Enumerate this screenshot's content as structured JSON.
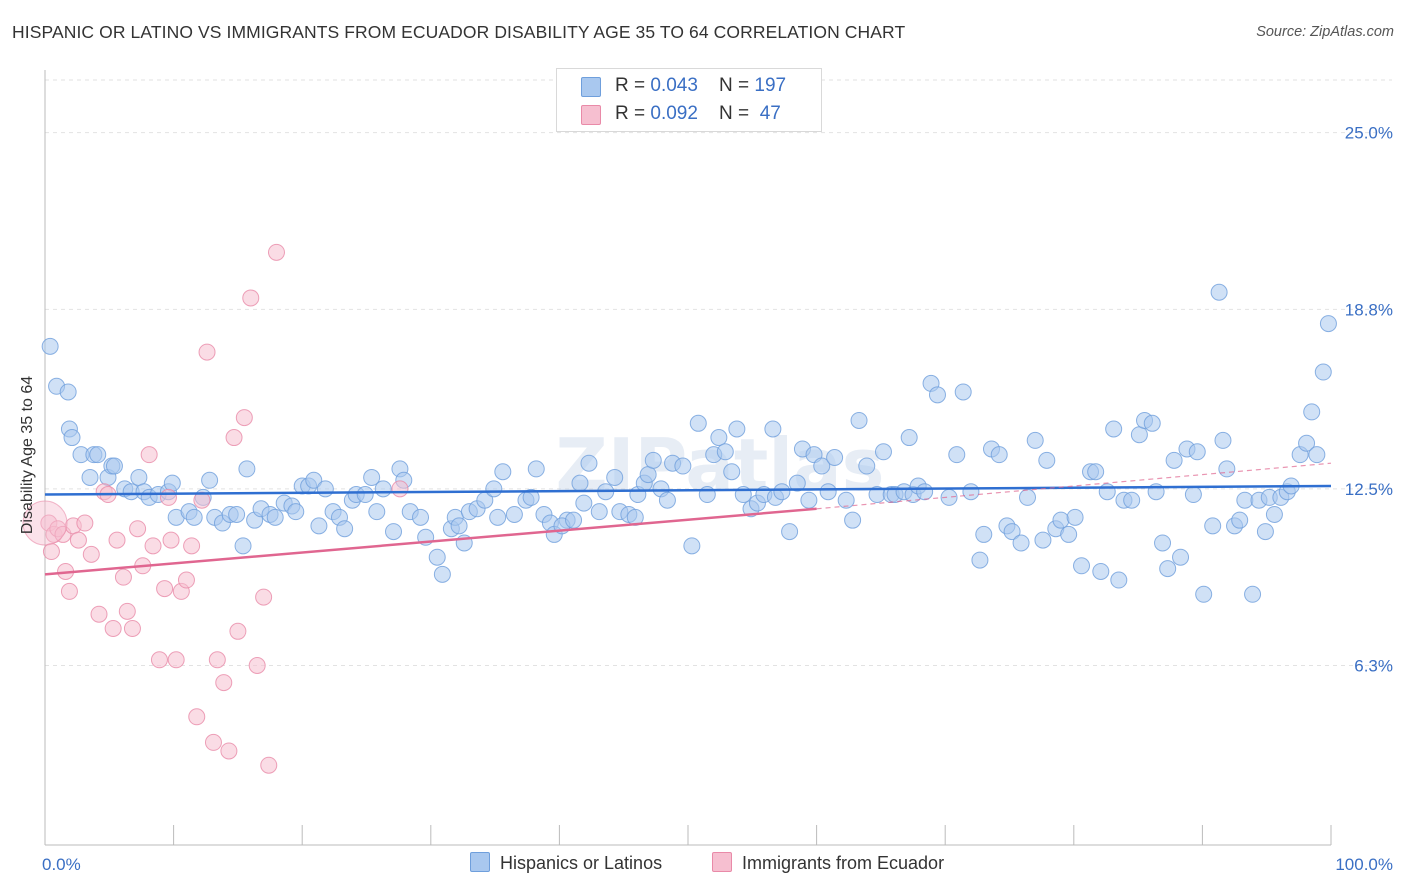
{
  "header": {
    "title": "HISPANIC OR LATINO VS IMMIGRANTS FROM ECUADOR DISABILITY AGE 35 TO 64 CORRELATION CHART",
    "source": "Source: ZipAtlas.com"
  },
  "legend": {
    "rows": [
      {
        "r_label": "R = ",
        "r_value": "0.043",
        "n_label": "N = ",
        "n_value": "197"
      },
      {
        "r_label": "R = ",
        "r_value": "0.092",
        "n_label": "N = ",
        "n_value": " 47"
      }
    ]
  },
  "bottom_legend": {
    "series_a": "Hispanics or Latinos",
    "series_b": "Immigrants from Ecuador"
  },
  "watermark": "ZIPatlas",
  "colors": {
    "blue_fill": "#a9c8ef",
    "blue_stroke": "#6f9fdc",
    "blue_line": "#2f6fd1",
    "pink_fill": "#f6bfd0",
    "pink_stroke": "#e98aa8",
    "pink_line": "#e06690",
    "label_blue": "#3a6fc4",
    "grid": "#e2e2e2"
  },
  "chart_data": {
    "type": "scatter",
    "xlabel": "",
    "ylabel": "Disability Age 35 to 64",
    "xlim": [
      0,
      100
    ],
    "ylim": [
      0,
      27.2
    ],
    "x_tick_labels": [
      "0.0%",
      "100.0%"
    ],
    "y_ticks": [
      6.3,
      12.5,
      18.8,
      25.0
    ],
    "y_tick_labels": [
      "6.3%",
      "12.5%",
      "18.8%",
      "25.0%"
    ],
    "grid": "horizontal dashed",
    "legend_position": "top-center",
    "series": [
      {
        "name": "Hispanics or Latinos",
        "color": "#a9c8ef",
        "r": 0.043,
        "n": 197,
        "trend": {
          "x": [
            0,
            100
          ],
          "y": [
            12.3,
            12.6
          ]
        },
        "points": [
          [
            0.4,
            17.5
          ],
          [
            0.9,
            16.1
          ],
          [
            1.8,
            15.9
          ],
          [
            1.9,
            14.6
          ],
          [
            2.1,
            14.3
          ],
          [
            2.8,
            13.7
          ],
          [
            3.5,
            12.9
          ],
          [
            3.8,
            13.7
          ],
          [
            4.1,
            13.7
          ],
          [
            4.9,
            12.9
          ],
          [
            5.2,
            13.3
          ],
          [
            5.4,
            13.3
          ],
          [
            6.2,
            12.5
          ],
          [
            6.7,
            12.4
          ],
          [
            7.3,
            12.9
          ],
          [
            7.7,
            12.4
          ],
          [
            8.1,
            12.2
          ],
          [
            8.8,
            12.3
          ],
          [
            9.6,
            12.4
          ],
          [
            9.9,
            12.7
          ],
          [
            10.2,
            11.5
          ],
          [
            11.2,
            11.7
          ],
          [
            11.6,
            11.5
          ],
          [
            12.3,
            12.2
          ],
          [
            12.8,
            12.8
          ],
          [
            13.2,
            11.5
          ],
          [
            13.8,
            11.3
          ],
          [
            14.4,
            11.6
          ],
          [
            14.9,
            11.6
          ],
          [
            15.4,
            10.5
          ],
          [
            15.7,
            13.2
          ],
          [
            16.3,
            11.4
          ],
          [
            16.8,
            11.8
          ],
          [
            17.5,
            11.6
          ],
          [
            17.9,
            11.5
          ],
          [
            18.6,
            12.0
          ],
          [
            19.2,
            11.9
          ],
          [
            19.5,
            11.7
          ],
          [
            20.0,
            12.6
          ],
          [
            20.5,
            12.6
          ],
          [
            20.9,
            12.8
          ],
          [
            21.3,
            11.2
          ],
          [
            21.8,
            12.5
          ],
          [
            22.4,
            11.7
          ],
          [
            22.9,
            11.5
          ],
          [
            23.3,
            11.1
          ],
          [
            23.9,
            12.1
          ],
          [
            24.2,
            12.3
          ],
          [
            24.9,
            12.3
          ],
          [
            25.4,
            12.9
          ],
          [
            25.8,
            11.7
          ],
          [
            26.3,
            12.5
          ],
          [
            27.1,
            11.0
          ],
          [
            27.6,
            13.2
          ],
          [
            27.9,
            12.8
          ],
          [
            28.4,
            11.7
          ],
          [
            29.2,
            11.5
          ],
          [
            29.6,
            10.8
          ],
          [
            30.5,
            10.1
          ],
          [
            30.9,
            9.5
          ],
          [
            31.6,
            11.1
          ],
          [
            31.9,
            11.5
          ],
          [
            32.2,
            11.2
          ],
          [
            32.6,
            10.6
          ],
          [
            33.0,
            11.7
          ],
          [
            33.6,
            11.8
          ],
          [
            34.2,
            12.1
          ],
          [
            34.9,
            12.5
          ],
          [
            35.6,
            13.1
          ],
          [
            35.2,
            11.5
          ],
          [
            36.5,
            11.6
          ],
          [
            37.4,
            12.1
          ],
          [
            37.8,
            12.2
          ],
          [
            38.2,
            13.2
          ],
          [
            38.8,
            11.6
          ],
          [
            39.3,
            11.3
          ],
          [
            39.6,
            10.9
          ],
          [
            40.6,
            11.4
          ],
          [
            40.2,
            11.2
          ],
          [
            41.1,
            11.4
          ],
          [
            41.6,
            12.7
          ],
          [
            41.9,
            12.0
          ],
          [
            42.3,
            13.4
          ],
          [
            43.1,
            11.7
          ],
          [
            43.6,
            12.4
          ],
          [
            44.3,
            12.9
          ],
          [
            44.7,
            11.7
          ],
          [
            45.4,
            11.6
          ],
          [
            45.9,
            11.5
          ],
          [
            46.1,
            12.3
          ],
          [
            46.6,
            12.7
          ],
          [
            46.9,
            13.0
          ],
          [
            47.3,
            13.5
          ],
          [
            47.9,
            12.5
          ],
          [
            48.4,
            12.1
          ],
          [
            48.8,
            13.4
          ],
          [
            49.6,
            13.3
          ],
          [
            50.3,
            10.5
          ],
          [
            50.8,
            14.8
          ],
          [
            51.5,
            12.3
          ],
          [
            52.0,
            13.7
          ],
          [
            52.4,
            14.3
          ],
          [
            52.9,
            13.8
          ],
          [
            53.4,
            13.1
          ],
          [
            53.8,
            14.6
          ],
          [
            54.3,
            12.3
          ],
          [
            54.9,
            11.8
          ],
          [
            55.4,
            12.0
          ],
          [
            55.9,
            12.3
          ],
          [
            56.6,
            14.6
          ],
          [
            56.8,
            12.2
          ],
          [
            57.3,
            12.4
          ],
          [
            57.9,
            11.0
          ],
          [
            58.5,
            12.7
          ],
          [
            58.9,
            13.9
          ],
          [
            59.4,
            12.1
          ],
          [
            59.8,
            13.7
          ],
          [
            60.4,
            13.3
          ],
          [
            60.9,
            12.4
          ],
          [
            61.4,
            13.6
          ],
          [
            62.3,
            12.1
          ],
          [
            62.8,
            11.4
          ],
          [
            63.3,
            14.9
          ],
          [
            63.9,
            13.3
          ],
          [
            64.7,
            12.3
          ],
          [
            65.2,
            13.8
          ],
          [
            65.8,
            12.3
          ],
          [
            66.1,
            12.3
          ],
          [
            66.8,
            12.4
          ],
          [
            67.2,
            14.3
          ],
          [
            67.5,
            12.3
          ],
          [
            67.9,
            12.6
          ],
          [
            68.4,
            12.4
          ],
          [
            68.9,
            16.2
          ],
          [
            69.4,
            15.8
          ],
          [
            70.3,
            12.2
          ],
          [
            70.9,
            13.7
          ],
          [
            71.4,
            15.9
          ],
          [
            72.0,
            12.4
          ],
          [
            72.7,
            10.0
          ],
          [
            73.0,
            10.9
          ],
          [
            73.6,
            13.9
          ],
          [
            74.2,
            13.7
          ],
          [
            74.8,
            11.2
          ],
          [
            75.2,
            11.0
          ],
          [
            75.9,
            10.6
          ],
          [
            76.4,
            12.2
          ],
          [
            77.0,
            14.2
          ],
          [
            77.6,
            10.7
          ],
          [
            77.9,
            13.5
          ],
          [
            78.6,
            11.1
          ],
          [
            79.0,
            11.4
          ],
          [
            79.6,
            10.9
          ],
          [
            80.1,
            11.5
          ],
          [
            80.6,
            9.8
          ],
          [
            81.3,
            13.1
          ],
          [
            81.7,
            13.1
          ],
          [
            82.1,
            9.6
          ],
          [
            82.6,
            12.4
          ],
          [
            83.1,
            14.6
          ],
          [
            83.5,
            9.3
          ],
          [
            83.9,
            12.1
          ],
          [
            84.5,
            12.1
          ],
          [
            85.1,
            14.4
          ],
          [
            85.5,
            14.9
          ],
          [
            86.1,
            14.8
          ],
          [
            86.4,
            12.4
          ],
          [
            86.9,
            10.6
          ],
          [
            87.3,
            9.7
          ],
          [
            87.8,
            13.5
          ],
          [
            88.3,
            10.1
          ],
          [
            88.8,
            13.9
          ],
          [
            89.3,
            12.3
          ],
          [
            89.6,
            13.8
          ],
          [
            90.1,
            8.8
          ],
          [
            90.8,
            11.2
          ],
          [
            91.3,
            19.4
          ],
          [
            91.6,
            14.2
          ],
          [
            91.9,
            13.2
          ],
          [
            92.5,
            11.2
          ],
          [
            92.9,
            11.4
          ],
          [
            93.3,
            12.1
          ],
          [
            93.9,
            8.8
          ],
          [
            94.4,
            12.1
          ],
          [
            94.9,
            11.0
          ],
          [
            95.2,
            12.2
          ],
          [
            95.6,
            11.6
          ],
          [
            96.1,
            12.2
          ],
          [
            96.6,
            12.4
          ],
          [
            96.9,
            12.6
          ],
          [
            97.6,
            13.7
          ],
          [
            98.1,
            14.1
          ],
          [
            98.5,
            15.2
          ],
          [
            98.9,
            13.7
          ],
          [
            99.4,
            16.6
          ],
          [
            99.8,
            18.3
          ]
        ]
      },
      {
        "name": "Immigrants from Ecuador",
        "color": "#f6bfd0",
        "r": 0.092,
        "n": 47,
        "trend": {
          "x": [
            0,
            60
          ],
          "y": [
            9.5,
            11.8
          ]
        },
        "trend_extension": {
          "x": [
            60,
            100
          ],
          "y": [
            11.8,
            13.4
          ]
        },
        "points": [
          [
            0.3,
            11.3
          ],
          [
            0.5,
            10.3
          ],
          [
            0.7,
            10.9
          ],
          [
            1.0,
            11.1
          ],
          [
            1.4,
            10.9
          ],
          [
            1.6,
            9.6
          ],
          [
            1.9,
            8.9
          ],
          [
            2.2,
            11.2
          ],
          [
            2.6,
            10.7
          ],
          [
            3.1,
            11.3
          ],
          [
            3.6,
            10.2
          ],
          [
            4.2,
            8.1
          ],
          [
            4.6,
            12.4
          ],
          [
            4.9,
            12.3
          ],
          [
            5.3,
            7.6
          ],
          [
            5.6,
            10.7
          ],
          [
            6.1,
            9.4
          ],
          [
            6.4,
            8.2
          ],
          [
            6.8,
            7.6
          ],
          [
            7.2,
            11.1
          ],
          [
            7.6,
            9.8
          ],
          [
            8.1,
            13.7
          ],
          [
            8.4,
            10.5
          ],
          [
            8.9,
            6.5
          ],
          [
            9.3,
            9.0
          ],
          [
            9.6,
            12.2
          ],
          [
            9.8,
            10.7
          ],
          [
            10.2,
            6.5
          ],
          [
            10.6,
            8.9
          ],
          [
            11.0,
            9.3
          ],
          [
            11.4,
            10.5
          ],
          [
            11.8,
            4.5
          ],
          [
            12.2,
            12.1
          ],
          [
            12.6,
            17.3
          ],
          [
            13.1,
            3.6
          ],
          [
            13.4,
            6.5
          ],
          [
            13.9,
            5.7
          ],
          [
            14.3,
            3.3
          ],
          [
            14.7,
            14.3
          ],
          [
            15.0,
            7.5
          ],
          [
            15.5,
            15.0
          ],
          [
            16.0,
            19.2
          ],
          [
            16.5,
            6.3
          ],
          [
            17.0,
            8.7
          ],
          [
            17.4,
            2.8
          ],
          [
            18.0,
            20.8
          ],
          [
            27.6,
            12.5
          ]
        ]
      }
    ]
  }
}
